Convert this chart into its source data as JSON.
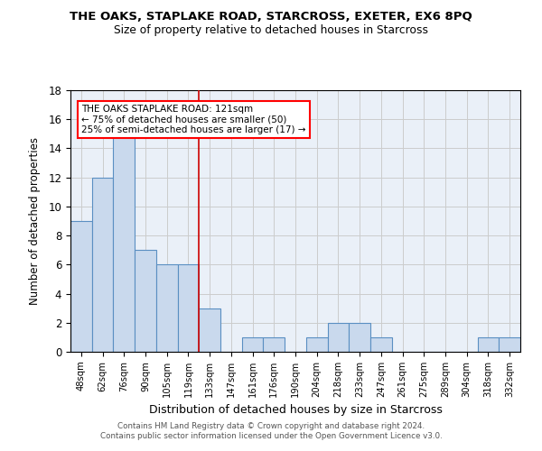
{
  "title": "THE OAKS, STAPLAKE ROAD, STARCROSS, EXETER, EX6 8PQ",
  "subtitle": "Size of property relative to detached houses in Starcross",
  "xlabel": "Distribution of detached houses by size in Starcross",
  "ylabel": "Number of detached properties",
  "footer1": "Contains HM Land Registry data © Crown copyright and database right 2024.",
  "footer2": "Contains public sector information licensed under the Open Government Licence v3.0.",
  "bin_labels": [
    "48sqm",
    "62sqm",
    "76sqm",
    "90sqm",
    "105sqm",
    "119sqm",
    "133sqm",
    "147sqm",
    "161sqm",
    "176sqm",
    "190sqm",
    "204sqm",
    "218sqm",
    "233sqm",
    "247sqm",
    "261sqm",
    "275sqm",
    "289sqm",
    "304sqm",
    "318sqm",
    "332sqm"
  ],
  "bar_values": [
    9,
    12,
    15,
    7,
    6,
    6,
    3,
    0,
    1,
    1,
    0,
    1,
    2,
    2,
    1,
    0,
    0,
    0,
    0,
    1,
    1
  ],
  "bar_color": "#c9d9ed",
  "bar_edge_color": "#5a8fc2",
  "vline_x": 5.5,
  "vline_color": "#cc0000",
  "ylim": [
    0,
    18
  ],
  "yticks": [
    0,
    2,
    4,
    6,
    8,
    10,
    12,
    14,
    16,
    18
  ],
  "annotation_text": "THE OAKS STAPLAKE ROAD: 121sqm\n← 75% of detached houses are smaller (50)\n25% of semi-detached houses are larger (17) →",
  "grid_color": "#cccccc",
  "bg_color": "#eaf0f8"
}
